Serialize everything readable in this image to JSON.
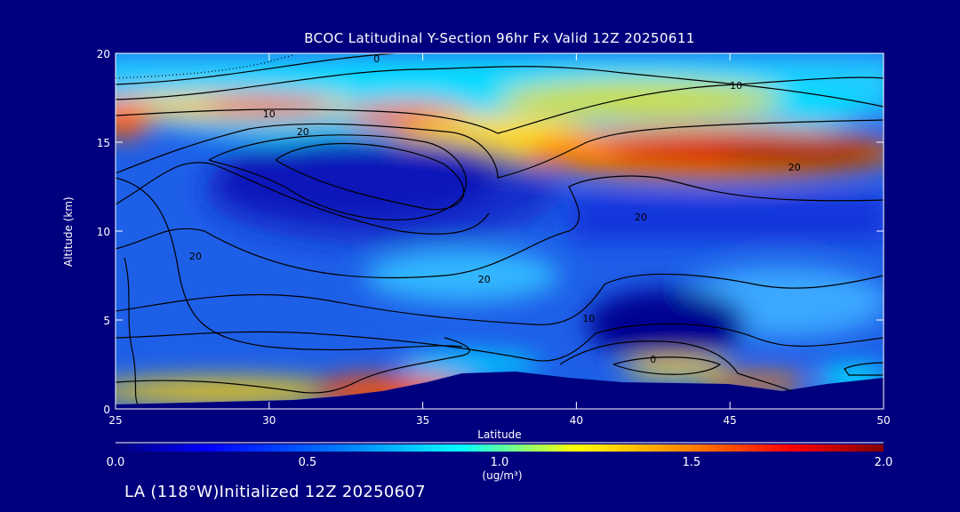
{
  "chart_data": {
    "type": "heatmap",
    "title": "BCOC Latitudinal Y-Section 96hr  Fx Valid 12Z 20250611",
    "xlabel": "Latitude",
    "ylabel": "Altitude (km)",
    "xlim": [
      25,
      50
    ],
    "ylim": [
      0,
      20
    ],
    "x_ticks": [
      25,
      30,
      35,
      40,
      45,
      50
    ],
    "y_ticks": [
      0,
      5,
      10,
      15,
      20
    ],
    "colorbar": {
      "min": 0.0,
      "max": 2.0,
      "ticks": [
        "0.0",
        "0.5",
        "1.0",
        "1.5",
        "2.0"
      ],
      "units": "(ug/m³)",
      "colors": [
        "#00007f",
        "#0000ff",
        "#0080ff",
        "#00ffff",
        "#ffff00",
        "#ff8000",
        "#ff0000",
        "#800000"
      ]
    },
    "contour_labels": [
      {
        "text": "0",
        "lat": 33.5,
        "alt": 19.7
      },
      {
        "text": "10",
        "lat": 30.0,
        "alt": 16.6
      },
      {
        "text": "20",
        "lat": 31.1,
        "alt": 15.6
      },
      {
        "text": "10",
        "lat": 45.2,
        "alt": 18.2
      },
      {
        "text": "20",
        "lat": 47.1,
        "alt": 13.6
      },
      {
        "text": "20",
        "lat": 27.6,
        "alt": 8.6
      },
      {
        "text": "20",
        "lat": 37.0,
        "alt": 7.3
      },
      {
        "text": "20",
        "lat": 42.1,
        "alt": 10.8
      },
      {
        "text": "10",
        "lat": 40.4,
        "alt": 5.1
      },
      {
        "text": "0",
        "lat": 42.5,
        "alt": 2.8
      }
    ]
  },
  "footer": "LA (118°W)Initialized 12Z 20250607"
}
